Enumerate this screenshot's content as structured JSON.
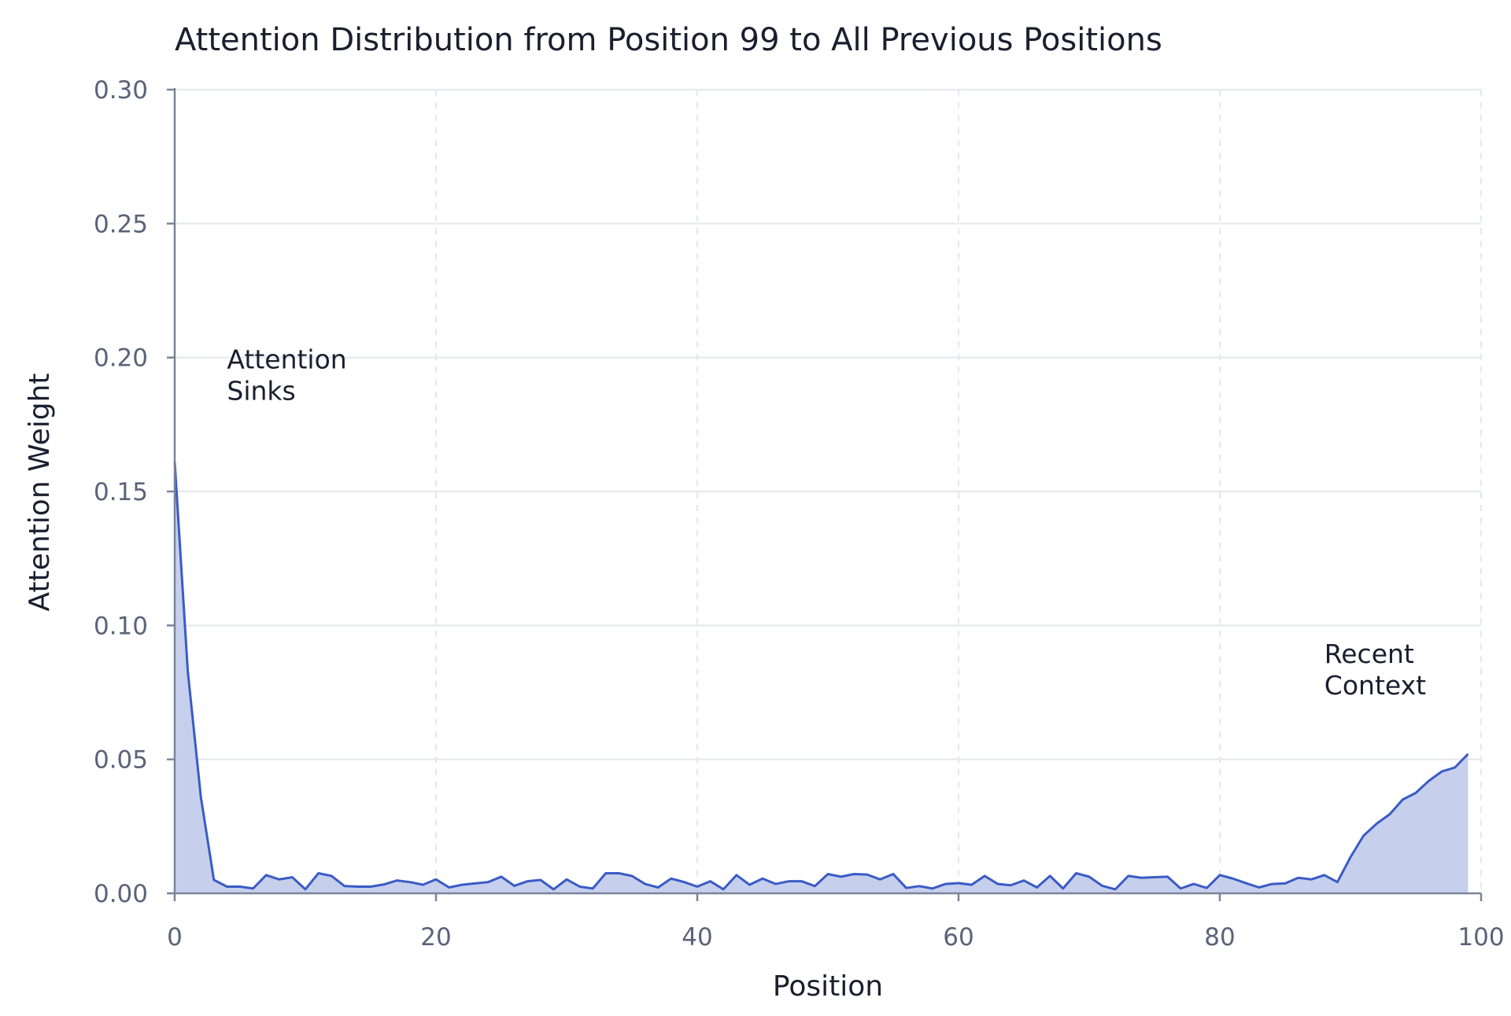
{
  "chart_data": {
    "type": "area",
    "title": "Attention Distribution from Position 99 to All Previous Positions",
    "xlabel": "Position",
    "ylabel": "Attention Weight",
    "xlim": [
      0,
      100
    ],
    "ylim": [
      0,
      0.3
    ],
    "x_ticks": [
      "0",
      "20",
      "40",
      "60",
      "80",
      "100"
    ],
    "y_ticks": [
      "0.00",
      "0.05",
      "0.10",
      "0.15",
      "0.20",
      "0.25",
      "0.30"
    ],
    "grid": true,
    "colors": {
      "line": "#3a5bc7",
      "fill": "#c3cdeb",
      "grid": "#e3e8ee",
      "axis": "#7a849a"
    },
    "annotations": [
      {
        "lines": [
          "Attention",
          "Sinks"
        ],
        "x": 4,
        "y": 0.196
      },
      {
        "lines": [
          "Recent",
          "Context"
        ],
        "x": 88,
        "y": 0.086
      }
    ],
    "series": [
      {
        "x": [
          0,
          1,
          2,
          3,
          4,
          5,
          6,
          7,
          8,
          9,
          10,
          11,
          12,
          13,
          14,
          15,
          16,
          17,
          18,
          19,
          20,
          21,
          22,
          23,
          24,
          25,
          26,
          27,
          28,
          29,
          30,
          31,
          32,
          33,
          34,
          35,
          36,
          37,
          38,
          39,
          40,
          41,
          42,
          43,
          44,
          45,
          46,
          47,
          48,
          49,
          50,
          51,
          52,
          53,
          54,
          55,
          56,
          57,
          58,
          59,
          60,
          61,
          62,
          63,
          64,
          65,
          66,
          67,
          68,
          69,
          70,
          71,
          72,
          73,
          74,
          75,
          76,
          77,
          78,
          79,
          80,
          81,
          82,
          83,
          84,
          85,
          86,
          87,
          88,
          89,
          90,
          91,
          92,
          93,
          94,
          95,
          96,
          97,
          98,
          99
        ],
        "values": [
          0.161,
          0.083,
          0.036,
          0.005,
          0.0025,
          0.0025,
          0.0018,
          0.0068,
          0.0052,
          0.006,
          0.0015,
          0.0075,
          0.0065,
          0.0027,
          0.0025,
          0.0025,
          0.0033,
          0.0048,
          0.0042,
          0.0032,
          0.0052,
          0.0022,
          0.0032,
          0.0037,
          0.0042,
          0.0062,
          0.0028,
          0.0045,
          0.005,
          0.0015,
          0.0052,
          0.0025,
          0.0018,
          0.0075,
          0.0075,
          0.0065,
          0.0035,
          0.0022,
          0.0055,
          0.0042,
          0.0025,
          0.0045,
          0.0015,
          0.0068,
          0.0032,
          0.0055,
          0.0035,
          0.0045,
          0.0045,
          0.0027,
          0.0072,
          0.0062,
          0.0072,
          0.007,
          0.0052,
          0.0072,
          0.002,
          0.0027,
          0.0018,
          0.0035,
          0.0038,
          0.0032,
          0.0065,
          0.0035,
          0.003,
          0.0048,
          0.0022,
          0.0065,
          0.0018,
          0.0075,
          0.0062,
          0.0028,
          0.0015,
          0.0065,
          0.0058,
          0.006,
          0.0062,
          0.0018,
          0.0035,
          0.002,
          0.0068,
          0.0055,
          0.0038,
          0.0022,
          0.0035,
          0.0037,
          0.0058,
          0.0052,
          0.0068,
          0.0042,
          0.0135,
          0.0215,
          0.026,
          0.0295,
          0.035,
          0.0375,
          0.042,
          0.0455,
          0.047,
          0.052
        ]
      }
    ]
  }
}
